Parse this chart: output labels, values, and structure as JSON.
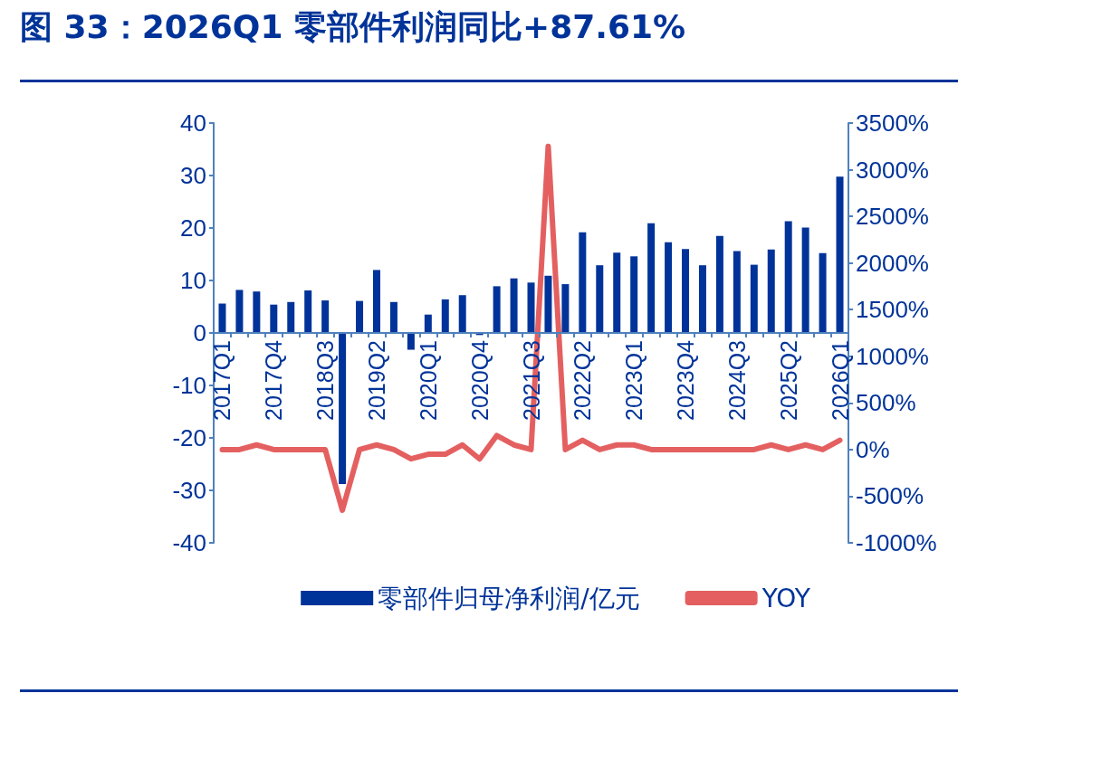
{
  "chart_data": {
    "type": "bar",
    "title": "图 33：2026Q1 零部件利润同比+87.61%",
    "categories": [
      "2017Q1",
      null,
      null,
      "2017Q4",
      null,
      null,
      "2018Q3",
      null,
      null,
      "2019Q2",
      null,
      null,
      "2020Q1",
      null,
      null,
      "2020Q4",
      null,
      null,
      "2021Q3",
      null,
      null,
      "2022Q2",
      null,
      null,
      "2023Q1",
      null,
      null,
      "2023Q4",
      null,
      null,
      "2024Q3",
      null,
      null,
      "2025Q2",
      null,
      null,
      "2026Q1"
    ],
    "series": [
      {
        "name": "零部件归母净利润/亿元",
        "color": "#003399",
        "values": [
          5.6,
          8.2,
          7.9,
          5.4,
          5.9,
          8.1,
          6.2,
          -28.8,
          6.1,
          12.0,
          5.9,
          -3.2,
          3.5,
          6.4,
          7.2,
          -0.4,
          8.9,
          10.4,
          9.6,
          10.9,
          9.3,
          19.2,
          12.9,
          15.3,
          14.6,
          20.9,
          17.3,
          16.0,
          12.9,
          18.5,
          15.6,
          13.0,
          15.9,
          21.3,
          20.1,
          15.2,
          29.8
        ]
      },
      {
        "name": "YOY",
        "type": "line",
        "axis": "y2",
        "color": "#e46060",
        "values": [
          0,
          0,
          50,
          0,
          0,
          0,
          0,
          -650,
          0,
          50,
          0,
          -100,
          -50,
          -50,
          50,
          -100,
          150,
          50,
          0,
          3250,
          0,
          100,
          0,
          50,
          50,
          0,
          0,
          0,
          0,
          0,
          0,
          0,
          50,
          0,
          50,
          0,
          100
        ]
      }
    ],
    "ylim": [
      -40,
      40
    ],
    "yticks": [
      -40,
      -30,
      -20,
      -10,
      0,
      10,
      20,
      30,
      40
    ],
    "y2lim": [
      -1000,
      3500
    ],
    "y2ticks": [
      {
        "value": -1000,
        "label": "-1000%"
      },
      {
        "value": -500,
        "label": "-500%"
      },
      {
        "value": 0,
        "label": "0%"
      },
      {
        "value": 500,
        "label": "500%"
      },
      {
        "value": 1000,
        "label": "1000%"
      },
      {
        "value": 1500,
        "label": "1500%"
      },
      {
        "value": 2000,
        "label": "2000%"
      },
      {
        "value": 2500,
        "label": "2500%"
      },
      {
        "value": 3000,
        "label": "3000%"
      },
      {
        "value": 3500,
        "label": "3500%"
      }
    ],
    "grid": false,
    "legend": "bottom",
    "marker": "none",
    "line_style": "solid"
  }
}
